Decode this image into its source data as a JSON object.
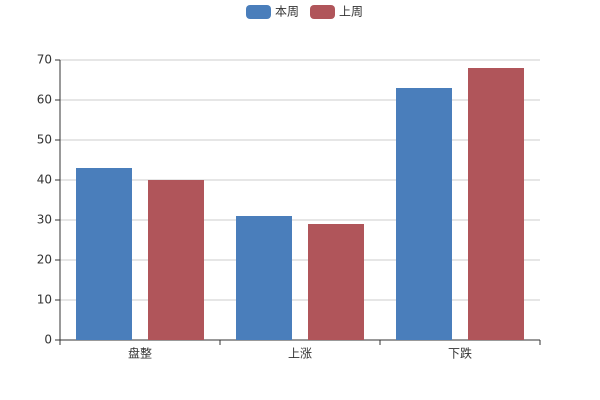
{
  "chart_data": {
    "type": "bar",
    "categories": [
      "盘整",
      "上涨",
      "下跌"
    ],
    "series": [
      {
        "name": "本周",
        "color": "#4a7ebb",
        "values": [
          43,
          31,
          63
        ]
      },
      {
        "name": "上周",
        "color": "#b0555a",
        "values": [
          40,
          29,
          68
        ]
      }
    ],
    "ylim": [
      0,
      70
    ],
    "yticks": [
      0,
      10,
      20,
      30,
      40,
      50,
      60,
      70
    ],
    "grid": true,
    "legend": "top"
  }
}
